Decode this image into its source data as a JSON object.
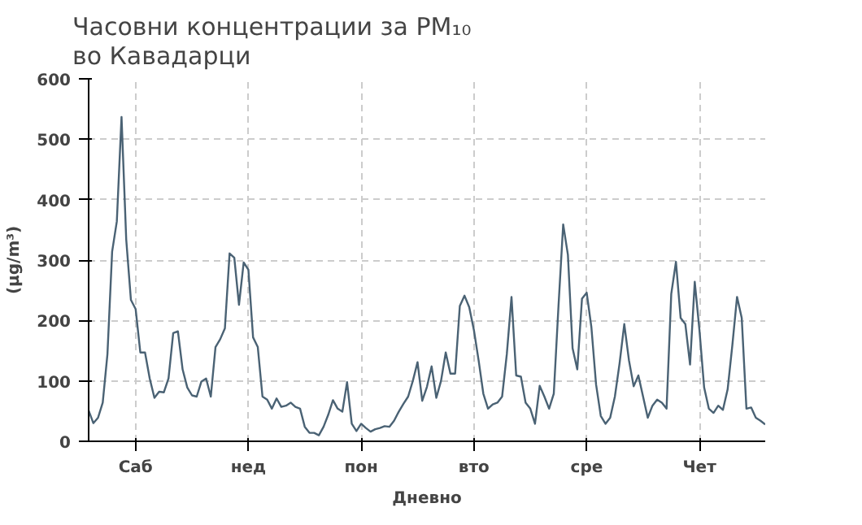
{
  "chart_data": {
    "type": "line",
    "title": "Часовни концентрации за PM₁₀\nво Кавадарци",
    "xlabel": "Дневно",
    "ylabel": "(µg/m³)",
    "categories": [
      null,
      null,
      null,
      null,
      null,
      null,
      null,
      null,
      null,
      null,
      "Саб",
      null,
      null,
      null,
      null,
      null,
      null,
      null,
      null,
      null,
      null,
      null,
      null,
      null,
      null,
      null,
      null,
      null,
      null,
      null,
      null,
      null,
      null,
      null,
      "нед",
      null,
      null,
      null,
      null,
      null,
      null,
      null,
      null,
      null,
      null,
      null,
      null,
      null,
      null,
      null,
      null,
      null,
      null,
      null,
      null,
      null,
      null,
      null,
      "пон",
      null,
      null,
      null,
      null,
      null,
      null,
      null,
      null,
      null,
      null,
      null,
      null,
      null,
      null,
      null,
      null,
      null,
      null,
      null,
      null,
      null,
      null,
      null,
      "вто",
      null,
      null,
      null,
      null,
      null,
      null,
      null,
      null,
      null,
      null,
      null,
      null,
      null,
      null,
      null,
      null,
      null,
      null,
      null,
      null,
      null,
      null,
      null,
      "сре",
      null,
      null,
      null,
      null,
      null,
      null,
      null,
      null,
      null,
      null,
      null,
      null,
      null,
      null,
      null,
      null,
      null,
      null,
      null,
      null,
      null,
      null,
      null,
      "Чет",
      null,
      null,
      null,
      null,
      null,
      null,
      null,
      null,
      null,
      null,
      null,
      null,
      null,
      null
    ],
    "ylim": [
      0,
      600
    ],
    "yticks": [
      0,
      100,
      200,
      300,
      400,
      500,
      600
    ],
    "grid": true,
    "line_style": "solid",
    "series": [
      {
        "color": "#4a6274",
        "values": [
          51,
          30,
          39,
          64,
          144,
          314,
          364,
          537,
          334,
          234,
          219,
          147,
          147,
          104,
          72,
          82,
          81,
          104,
          179,
          182,
          119,
          89,
          76,
          74,
          99,
          104,
          74,
          156,
          169,
          187,
          311,
          304,
          226,
          296,
          284,
          172,
          156,
          74,
          69,
          54,
          71,
          57,
          59,
          64,
          57,
          54,
          24,
          14,
          14,
          10,
          24,
          44,
          68,
          54,
          49,
          98,
          29,
          17,
          29,
          22,
          16,
          20,
          22,
          25,
          24,
          34,
          49,
          62,
          74,
          100,
          131,
          67,
          90,
          124,
          72,
          100,
          147,
          112,
          112,
          224,
          241,
          222,
          184,
          134,
          79,
          54,
          61,
          64,
          74,
          144,
          239,
          109,
          107,
          64,
          54,
          29,
          92,
          74,
          54,
          79,
          224,
          359,
          309,
          154,
          119,
          236,
          246,
          189,
          94,
          42,
          29,
          39,
          74,
          129,
          194,
          134,
          91,
          109,
          74,
          39,
          59,
          69,
          64,
          54,
          244,
          297,
          204,
          194,
          127,
          264,
          184,
          89,
          54,
          47,
          59,
          52,
          86,
          159,
          239,
          204,
          54,
          56,
          39,
          34,
          28
        ]
      }
    ]
  }
}
